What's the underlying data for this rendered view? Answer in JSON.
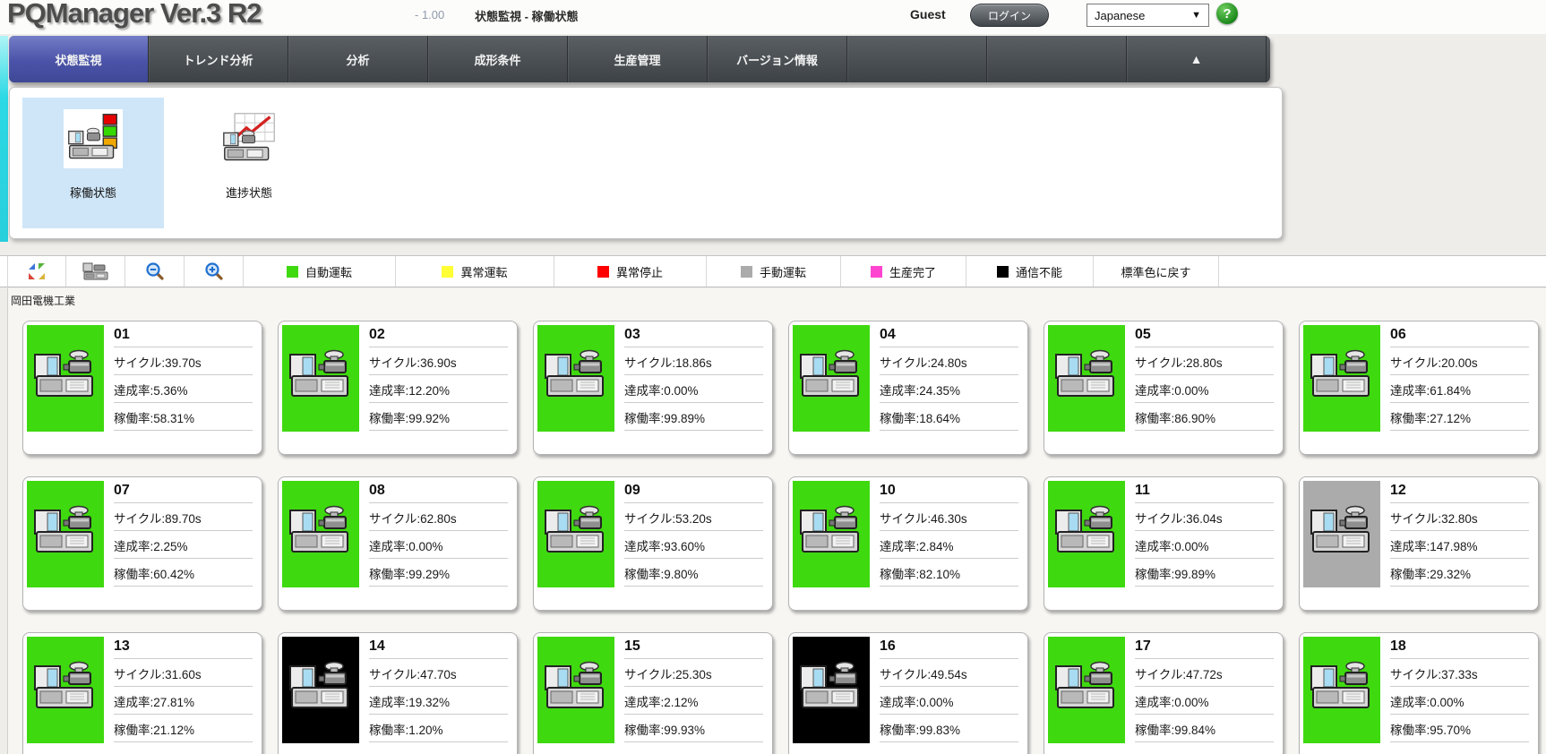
{
  "header": {
    "title": "PQManager Ver.3 R2",
    "version": "- 1.00",
    "breadcrumb": "状態監視 - 稼働状態",
    "user": "Guest",
    "login_label": "ログイン",
    "language": "Japanese",
    "help_label": "?"
  },
  "nav": {
    "tabs": [
      {
        "label": "状態監視",
        "selected": true
      },
      {
        "label": "トレンド分析",
        "selected": false
      },
      {
        "label": "分析",
        "selected": false
      },
      {
        "label": "成形条件",
        "selected": false
      },
      {
        "label": "生産管理",
        "selected": false
      },
      {
        "label": "バージョン情報",
        "selected": false
      },
      {
        "label": "",
        "selected": false
      },
      {
        "label": "",
        "selected": false
      },
      {
        "label": "▲",
        "selected": false
      }
    ]
  },
  "submenu": {
    "items": [
      {
        "label": "稼働状態",
        "selected": true,
        "icon": "machine-signal-tower-icon"
      },
      {
        "label": "進捗状態",
        "selected": false,
        "icon": "machine-trend-chart-icon"
      }
    ]
  },
  "toolbar": {
    "buttons": [
      {
        "icon": "tile-arrange-icon"
      },
      {
        "icon": "machine-view-icon"
      },
      {
        "icon": "zoom-out-icon"
      },
      {
        "icon": "zoom-in-icon"
      }
    ],
    "legend": [
      {
        "label": "自動運転",
        "color": "#3FD90F"
      },
      {
        "label": "異常運転",
        "color": "#FFFF33"
      },
      {
        "label": "異常停止",
        "color": "#FF0000"
      },
      {
        "label": "手動運転",
        "color": "#ABABAB"
      },
      {
        "label": "生産完了",
        "color": "#FF44D0"
      },
      {
        "label": "通信不能",
        "color": "#000000"
      }
    ],
    "reset_label": "標準色に戻す"
  },
  "factory": {
    "name": "岡田電機工業"
  },
  "machines": {
    "field_labels": {
      "cycle": "サイクル",
      "achievement": "達成率",
      "operation": "稼働率"
    },
    "status_colors": {
      "auto": "#3FD90F",
      "manual": "#ABABAB",
      "offline": "#000000"
    },
    "cards": [
      {
        "no": "01",
        "cycle": "39.70s",
        "achievement": "5.36%",
        "operation": "58.31%",
        "status": "auto"
      },
      {
        "no": "02",
        "cycle": "36.90s",
        "achievement": "12.20%",
        "operation": "99.92%",
        "status": "auto"
      },
      {
        "no": "03",
        "cycle": "18.86s",
        "achievement": "0.00%",
        "operation": "99.89%",
        "status": "auto"
      },
      {
        "no": "04",
        "cycle": "24.80s",
        "achievement": "24.35%",
        "operation": "18.64%",
        "status": "auto"
      },
      {
        "no": "05",
        "cycle": "28.80s",
        "achievement": "0.00%",
        "operation": "86.90%",
        "status": "auto"
      },
      {
        "no": "06",
        "cycle": "20.00s",
        "achievement": "61.84%",
        "operation": "27.12%",
        "status": "auto"
      },
      {
        "no": "07",
        "cycle": "89.70s",
        "achievement": "2.25%",
        "operation": "60.42%",
        "status": "auto"
      },
      {
        "no": "08",
        "cycle": "62.80s",
        "achievement": "0.00%",
        "operation": "99.29%",
        "status": "auto"
      },
      {
        "no": "09",
        "cycle": "53.20s",
        "achievement": "93.60%",
        "operation": "9.80%",
        "status": "auto"
      },
      {
        "no": "10",
        "cycle": "46.30s",
        "achievement": "2.84%",
        "operation": "82.10%",
        "status": "auto"
      },
      {
        "no": "11",
        "cycle": "36.04s",
        "achievement": "0.00%",
        "operation": "99.89%",
        "status": "auto"
      },
      {
        "no": "12",
        "cycle": "32.80s",
        "achievement": "147.98%",
        "operation": "29.32%",
        "status": "manual"
      },
      {
        "no": "13",
        "cycle": "31.60s",
        "achievement": "27.81%",
        "operation": "21.12%",
        "status": "auto"
      },
      {
        "no": "14",
        "cycle": "47.70s",
        "achievement": "19.32%",
        "operation": "1.20%",
        "status": "offline"
      },
      {
        "no": "15",
        "cycle": "25.30s",
        "achievement": "2.12%",
        "operation": "99.93%",
        "status": "auto"
      },
      {
        "no": "16",
        "cycle": "49.54s",
        "achievement": "0.00%",
        "operation": "99.83%",
        "status": "offline"
      },
      {
        "no": "17",
        "cycle": "47.72s",
        "achievement": "0.00%",
        "operation": "99.84%",
        "status": "auto"
      },
      {
        "no": "18",
        "cycle": "37.33s",
        "achievement": "0.00%",
        "operation": "95.70%",
        "status": "auto"
      }
    ]
  },
  "colors": {
    "nav_selected": "#4A53A8",
    "submenu_selected_bg": "#CFE6F8",
    "left_stripe": "#2CD9E4"
  }
}
